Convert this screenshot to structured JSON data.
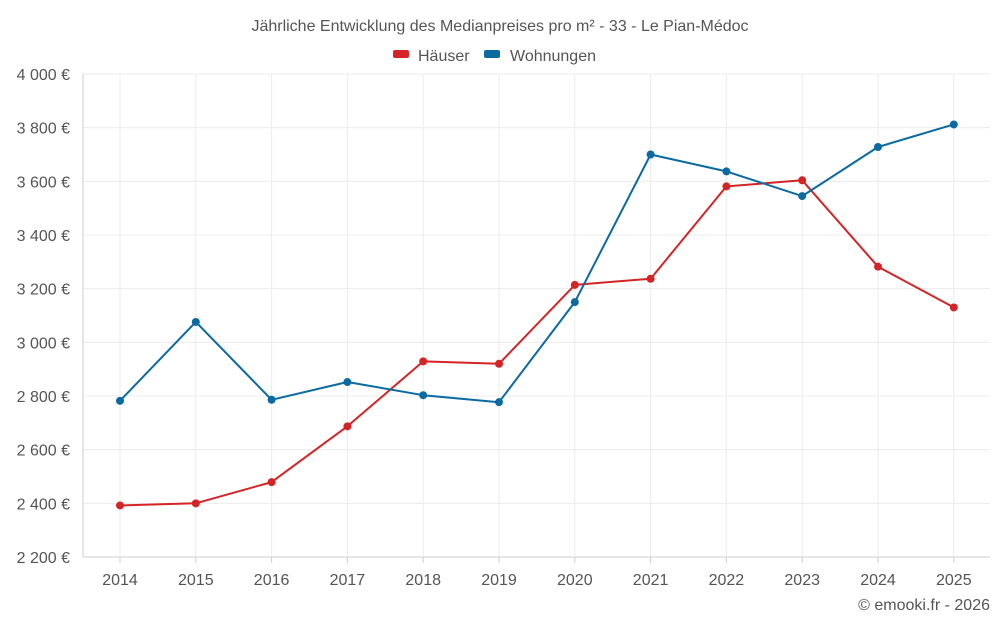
{
  "chart_data": {
    "type": "line",
    "title": "Jährliche Entwicklung des Medianpreises pro m² - 33 - Le Pian-Médoc",
    "xlabel": "",
    "ylabel": "",
    "categories": [
      "2014",
      "2015",
      "2016",
      "2017",
      "2018",
      "2019",
      "2020",
      "2021",
      "2022",
      "2023",
      "2024",
      "2025"
    ],
    "ylim": [
      2200,
      4000
    ],
    "yticks": [
      2200,
      2400,
      2600,
      2800,
      3000,
      3200,
      3400,
      3600,
      3800,
      4000
    ],
    "ytick_labels": [
      "2 200 €",
      "2 400 €",
      "2 600 €",
      "2 800 €",
      "3 000 €",
      "3 200 €",
      "3 400 €",
      "3 600 €",
      "3 800 €",
      "4 000 €"
    ],
    "grid": true,
    "legend_position": "top-center",
    "series": [
      {
        "name": "Häuser",
        "color": "#d42426",
        "values": [
          2392,
          2400,
          2479,
          2687,
          2929,
          2920,
          3214,
          3237,
          3581,
          3604,
          3282,
          3130
        ]
      },
      {
        "name": "Wohnungen",
        "color": "#0a6aa1",
        "values": [
          2782,
          3076,
          2786,
          2852,
          2803,
          2777,
          3150,
          3700,
          3637,
          3545,
          3728,
          3812
        ]
      }
    ]
  },
  "copyright": "© emooki.fr - 2026"
}
